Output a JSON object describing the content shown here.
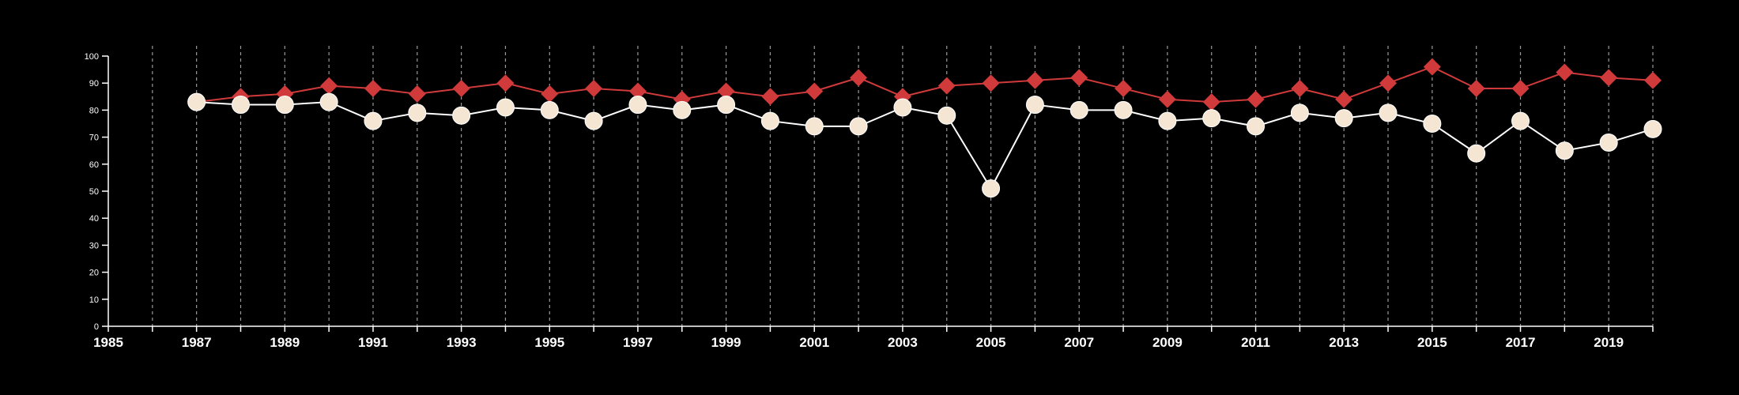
{
  "chart_data": {
    "type": "line",
    "title": "",
    "xlabel": "",
    "ylabel": "",
    "xlim": [
      1985,
      2020
    ],
    "ylim": [
      0,
      100
    ],
    "x_ticks": [
      1985,
      1987,
      1989,
      1991,
      1993,
      1995,
      1997,
      1999,
      2001,
      2003,
      2005,
      2007,
      2009,
      2011,
      2013,
      2015,
      2017,
      2019
    ],
    "y_ticks": [
      0,
      10,
      20,
      30,
      40,
      50,
      60,
      70,
      80,
      90,
      100
    ],
    "grid": "vertical dashed lines at every year",
    "legend": "none",
    "x": [
      1987,
      1988,
      1989,
      1990,
      1991,
      1992,
      1993,
      1994,
      1995,
      1996,
      1997,
      1998,
      1999,
      2000,
      2001,
      2002,
      2003,
      2004,
      2005,
      2006,
      2007,
      2008,
      2009,
      2010,
      2011,
      2012,
      2013,
      2014,
      2015,
      2016,
      2017,
      2018,
      2019,
      2020
    ],
    "series": [
      {
        "color": "#d03a3a",
        "marker": "diamond",
        "values": [
          83,
          85,
          86,
          89,
          88,
          86,
          88,
          90,
          86,
          88,
          87,
          84,
          87,
          85,
          87,
          92,
          85,
          89,
          90,
          91,
          92,
          88,
          84,
          83,
          84,
          88,
          84,
          90,
          96,
          88,
          88,
          94,
          92,
          91
        ]
      },
      {
        "color": "#f5e6d3",
        "line_color": "#ffffff",
        "marker": "circle",
        "values": [
          83,
          82,
          82,
          83,
          76,
          79,
          78,
          81,
          80,
          76,
          82,
          80,
          82,
          76,
          74,
          74,
          81,
          78,
          51,
          82,
          80,
          80,
          76,
          77,
          74,
          79,
          77,
          79,
          75,
          64,
          76,
          65,
          68,
          73
        ]
      }
    ]
  }
}
